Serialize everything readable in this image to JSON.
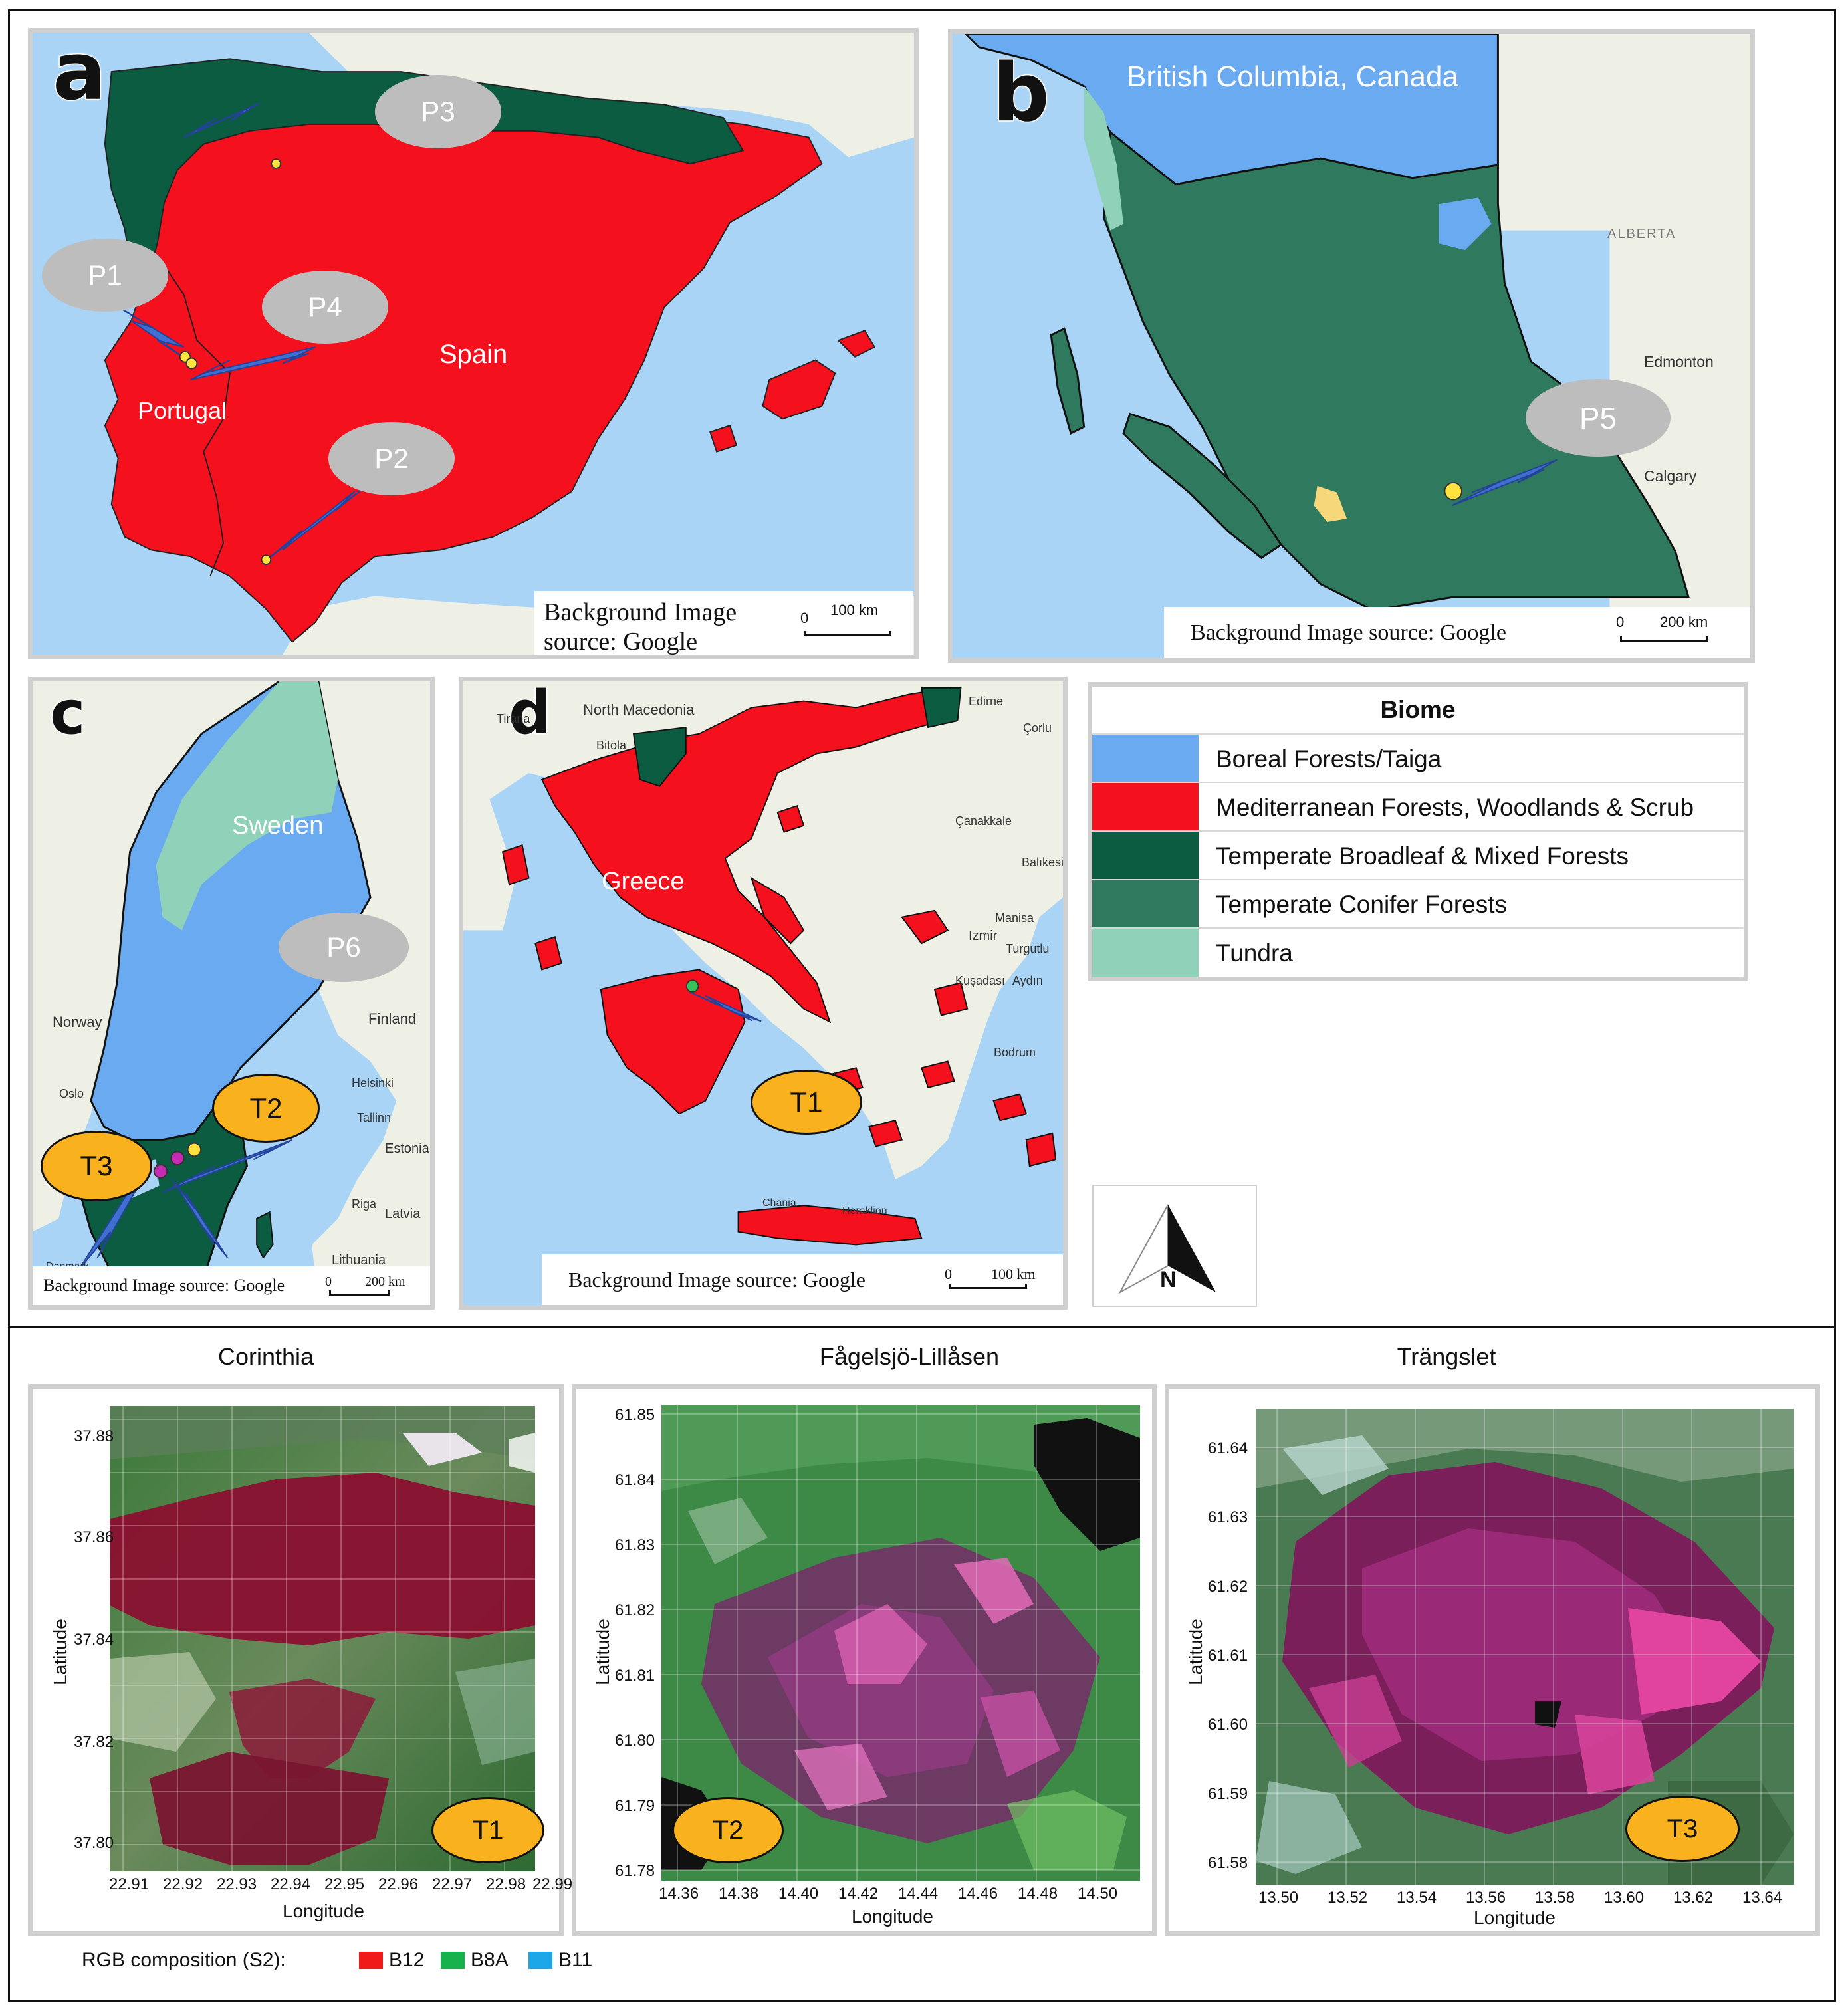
{
  "panels": {
    "a": {
      "letter": "a",
      "country_labels": [
        "Spain",
        "Portugal"
      ],
      "points": [
        "P1",
        "P2",
        "P3",
        "P4"
      ],
      "credit": "Background Image source: Google",
      "scale": {
        "zero": "0",
        "value": "100 km"
      }
    },
    "b": {
      "letter": "b",
      "region_label": "British Columbia, Canada",
      "points": [
        "P5"
      ],
      "basemap_labels": [
        "ALBERTA",
        "Edmonton",
        "Calgary"
      ],
      "credit": "Background Image source: Google",
      "scale": {
        "zero": "0",
        "value": "200 km"
      }
    },
    "c": {
      "letter": "c",
      "country_label": "Sweden",
      "points": [
        "P6"
      ],
      "fire_labels": [
        "T2",
        "T3"
      ],
      "basemap_labels": [
        "Norway",
        "Finland",
        "Oslo",
        "Helsinki",
        "Tallinn",
        "Estonia",
        "Riga",
        "Latvia",
        "Lithuania",
        "Denmark"
      ],
      "credit": "Background Image source: Google",
      "scale": {
        "zero": "0",
        "value": "200 km"
      }
    },
    "d": {
      "letter": "d",
      "country_label": "Greece",
      "fire_labels": [
        "T1"
      ],
      "basemap_labels": [
        "North Macedonia",
        "Tirana",
        "Bitola",
        "Edirne",
        "Çorlu",
        "Çanakkale",
        "Balıkesir",
        "Izmir",
        "Manisa",
        "Turgutlu",
        "Kuşadası",
        "Aydın",
        "Bodrum",
        "Chania",
        "Heraklion"
      ],
      "credit": "Background Image source: Google",
      "scale": {
        "zero": "0",
        "value": "100 km"
      }
    }
  },
  "legend": {
    "title": "Biome",
    "items": [
      {
        "label": "Boreal Forests/Taiga",
        "color": "#6aaaf0"
      },
      {
        "label": "Mediterranean Forests, Woodlands & Scrub",
        "color": "#f5101e"
      },
      {
        "label": "Temperate Broadleaf & Mixed Forests",
        "color": "#0c5c42"
      },
      {
        "label": "Temperate Conifer Forests",
        "color": "#2f7a5e"
      },
      {
        "label": "Tundra",
        "color": "#8fd1b9"
      }
    ]
  },
  "north_arrow": {
    "label": "N"
  },
  "satellite": [
    {
      "title": "Corinthia",
      "badge": "T1",
      "x_ticks": [
        "22.91",
        "22.92",
        "22.93",
        "22.94",
        "22.95",
        "22.96",
        "22.97",
        "22.98",
        "22.99"
      ],
      "y_ticks": [
        "37.88",
        "37.86",
        "37.84",
        "37.82",
        "37.80"
      ],
      "xlabel": "Longitude",
      "ylabel": "Latitude"
    },
    {
      "title": "Fågelsjö-Lillåsen",
      "badge": "T2",
      "x_ticks": [
        "14.36",
        "14.38",
        "14.40",
        "14.42",
        "14.44",
        "14.46",
        "14.48",
        "14.50"
      ],
      "y_ticks": [
        "61.85",
        "61.84",
        "61.83",
        "61.82",
        "61.81",
        "61.80",
        "61.79",
        "61.78"
      ],
      "xlabel": "Longitude",
      "ylabel": "Latitude"
    },
    {
      "title": "Trängslet",
      "badge": "T3",
      "x_ticks": [
        "13.50",
        "13.52",
        "13.54",
        "13.56",
        "13.58",
        "13.60",
        "13.62",
        "13.64"
      ],
      "y_ticks": [
        "61.64",
        "61.63",
        "61.62",
        "61.61",
        "61.60",
        "61.59",
        "61.58"
      ],
      "xlabel": "Longitude",
      "ylabel": "Latitude"
    }
  ],
  "rgb_legend": {
    "label": "RGB composition (S2):",
    "bands": [
      {
        "name": "B12",
        "color": "#f01a1a"
      },
      {
        "name": "B8A",
        "color": "#17b24b"
      },
      {
        "name": "B11",
        "color": "#1ba6e8"
      }
    ]
  }
}
